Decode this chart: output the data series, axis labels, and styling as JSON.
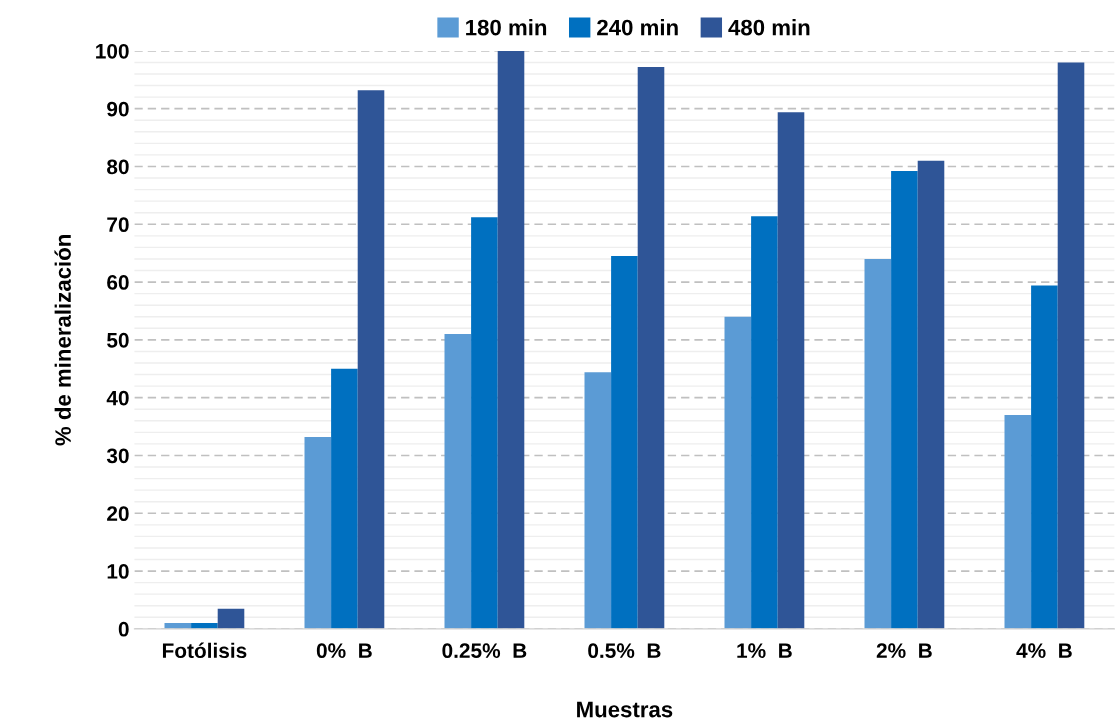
{
  "chart_data": {
    "type": "bar",
    "xlabel": "Muestras",
    "ylabel": "% de mineralización",
    "categories": [
      "Fotólisis",
      "0%  B",
      "0.25%  B",
      "0.5%  B",
      "1%  B",
      "2%  B",
      "4%  B"
    ],
    "series": [
      {
        "name": "180 min",
        "color": "#5b9bd5",
        "values": [
          1,
          33.2,
          51,
          44.4,
          54,
          64,
          37
        ]
      },
      {
        "name": "240 min",
        "color": "#0070c0",
        "values": [
          1,
          45,
          71.2,
          64.5,
          71.4,
          79.2,
          59.4
        ]
      },
      {
        "name": "480 min",
        "color": "#2f5597",
        "values": [
          3.5,
          93.2,
          100,
          97.2,
          89.4,
          81,
          98
        ]
      }
    ],
    "ylim": [
      0,
      100
    ],
    "yticks": [
      0,
      {
        "value": 2,
        "label": null
      },
      {
        "value": 4,
        "label": null
      },
      {
        "value": 6,
        "label": null
      },
      {
        "value": 8,
        "label": null
      },
      10,
      {
        "value": 12,
        "label": null
      },
      {
        "value": 14,
        "label": null
      },
      {
        "value": 16,
        "label": null
      },
      {
        "value": 18,
        "label": null
      },
      20,
      {
        "value": 22,
        "label": null
      },
      {
        "value": 24,
        "label": null
      },
      {
        "value": 26,
        "label": null
      },
      {
        "value": 28,
        "label": null
      },
      30,
      {
        "value": 32,
        "label": null
      },
      {
        "value": 34,
        "label": null
      },
      {
        "value": 36,
        "label": null
      },
      {
        "value": 38,
        "label": null
      },
      40,
      {
        "value": 42,
        "label": null
      },
      {
        "value": 44,
        "label": null
      },
      {
        "value": 46,
        "label": null
      },
      {
        "value": 48,
        "label": null
      },
      50,
      {
        "value": 52,
        "label": null
      },
      {
        "value": 54,
        "label": null
      },
      {
        "value": 56,
        "label": null
      },
      {
        "value": 58,
        "label": null
      },
      60,
      {
        "value": 62,
        "label": null
      },
      {
        "value": 64,
        "label": null
      },
      {
        "value": 66,
        "label": null
      },
      {
        "value": 68,
        "label": null
      },
      70,
      {
        "value": 72,
        "label": null
      },
      {
        "value": 74,
        "label": null
      },
      {
        "value": 76,
        "label": null
      },
      {
        "value": 78,
        "label": null
      },
      80,
      {
        "value": 82,
        "label": null
      },
      {
        "value": 84,
        "label": null
      },
      {
        "value": 86,
        "label": null
      },
      {
        "value": 88,
        "label": null
      },
      90,
      {
        "value": 92,
        "label": null
      },
      {
        "value": 94,
        "label": null
      },
      {
        "value": 96,
        "label": null
      },
      {
        "value": 98,
        "label": null
      },
      100
    ],
    "grid": "y",
    "legend": "top"
  }
}
